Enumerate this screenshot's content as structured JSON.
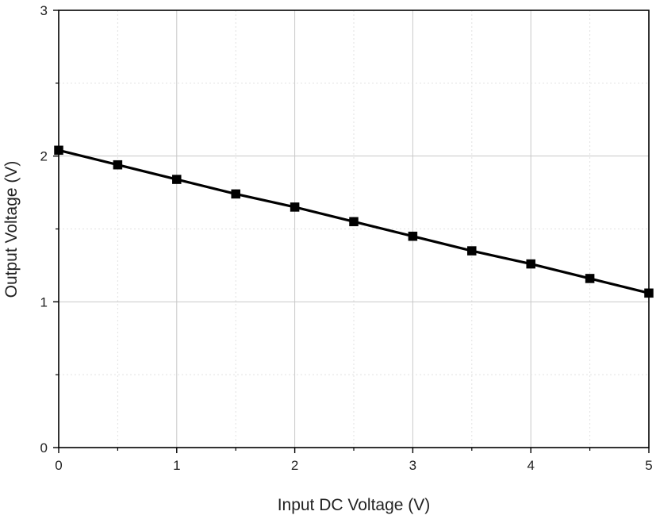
{
  "chart_data": {
    "type": "line",
    "title": "",
    "xlabel": "Input DC Voltage (V)",
    "ylabel": "Output Voltage (V)",
    "xlim": [
      0,
      5
    ],
    "ylim": [
      0,
      3
    ],
    "xticks": [
      "0",
      "1",
      "2",
      "3",
      "4",
      "5"
    ],
    "yticks": [
      "0",
      "1",
      "2",
      "3"
    ],
    "grid": true,
    "legend": "none",
    "series": [
      {
        "marker": "square",
        "color": "#000000",
        "x": [
          0,
          0.5,
          1.0,
          1.5,
          2.0,
          2.5,
          3.0,
          3.5,
          4.0,
          4.5,
          5.0
        ],
        "y": [
          2.04,
          1.94,
          1.84,
          1.74,
          1.65,
          1.55,
          1.45,
          1.35,
          1.26,
          1.16,
          1.06
        ]
      }
    ]
  }
}
